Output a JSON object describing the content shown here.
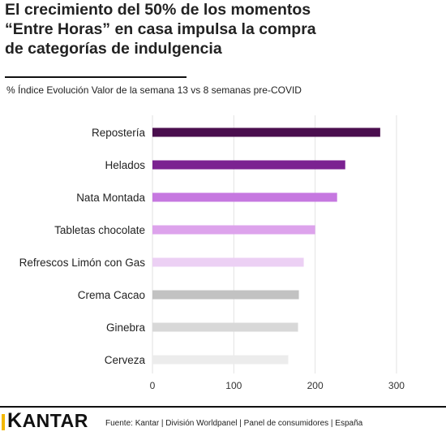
{
  "title_lines": [
    "El crecimiento del 50% de los momentos",
    "“Entre Horas” en casa impulsa la compra",
    "de categorías de indulgencia"
  ],
  "subtitle": "% Índice Evolución Valor de la semana 13 vs 8 semanas pre-COVID",
  "footer": {
    "logo": "KANTAR",
    "logo_text": "ANTAR",
    "source": "Fuente: Kantar | División Worldpanel | Panel de consumidores | España"
  },
  "chart_data": {
    "type": "bar",
    "orientation": "horizontal",
    "title": "",
    "xlabel": "",
    "ylabel": "",
    "categories": [
      "Repostería",
      "Helados",
      "Nata Montada",
      "Tabletas chocolate",
      "Refrescos Limón con Gas",
      "Crema Cacao",
      "Ginebra",
      "Cerveza"
    ],
    "values": [
      280,
      237,
      227,
      200,
      186,
      180,
      179,
      167
    ],
    "colors": [
      "#4a0e4e",
      "#7b2291",
      "#c678e0",
      "#dda3ec",
      "#ecd0f4",
      "#c2c2c2",
      "#d8d8d8",
      "#ececec"
    ],
    "xlim": [
      0,
      320
    ],
    "xticks": [
      0,
      100,
      200,
      300
    ],
    "grid": true
  }
}
